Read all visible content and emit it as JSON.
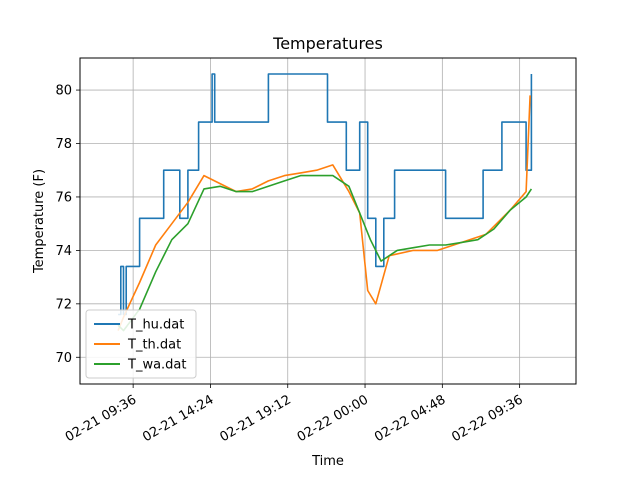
{
  "chart_data": {
    "type": "line",
    "title": "Temperatures",
    "xlabel": "Time",
    "ylabel": "Temperature (F)",
    "xlim": [
      "2021-02-21 06:18",
      "2021-02-22 13:06"
    ],
    "ylim": [
      69.0,
      81.2
    ],
    "x_ticks": [
      {
        "t": "2021-02-21 09:36",
        "label": "02-21 09:36"
      },
      {
        "t": "2021-02-21 14:24",
        "label": "02-21 14:24"
      },
      {
        "t": "2021-02-21 19:12",
        "label": "02-21 19:12"
      },
      {
        "t": "2021-02-22 00:00",
        "label": "02-22 00:00"
      },
      {
        "t": "2021-02-22 04:48",
        "label": "02-22 04:48"
      },
      {
        "t": "2021-02-22 09:36",
        "label": "02-22 09:36"
      }
    ],
    "y_ticks": [
      70,
      72,
      74,
      76,
      78,
      80
    ],
    "grid": true,
    "legend": "lower-left",
    "series": [
      {
        "name": "T_hu.dat",
        "color": "#1f77b4",
        "step": true,
        "points": [
          [
            "2021-02-21 08:40",
            71.6
          ],
          [
            "2021-02-21 08:50",
            73.4
          ],
          [
            "2021-02-21 09:00",
            71.6
          ],
          [
            "2021-02-21 09:10",
            73.4
          ],
          [
            "2021-02-21 10:00",
            75.2
          ],
          [
            "2021-02-21 11:30",
            77.0
          ],
          [
            "2021-02-21 12:30",
            75.2
          ],
          [
            "2021-02-21 13:00",
            77.0
          ],
          [
            "2021-02-21 13:40",
            78.8
          ],
          [
            "2021-02-21 14:30",
            80.6
          ],
          [
            "2021-02-21 14:40",
            78.8
          ],
          [
            "2021-02-21 18:00",
            80.6
          ],
          [
            "2021-02-21 21:40",
            78.8
          ],
          [
            "2021-02-21 22:50",
            77.0
          ],
          [
            "2021-02-21 23:40",
            78.8
          ],
          [
            "2021-02-22 00:10",
            75.2
          ],
          [
            "2021-02-22 00:40",
            73.4
          ],
          [
            "2021-02-22 01:10",
            75.2
          ],
          [
            "2021-02-22 01:50",
            77.0
          ],
          [
            "2021-02-22 05:00",
            75.2
          ],
          [
            "2021-02-22 07:20",
            77.0
          ],
          [
            "2021-02-22 08:30",
            78.8
          ],
          [
            "2021-02-22 10:00",
            77.0
          ],
          [
            "2021-02-22 10:20",
            80.6
          ]
        ]
      },
      {
        "name": "T_th.dat",
        "color": "#ff7f0e",
        "step": false,
        "points": [
          [
            "2021-02-21 08:40",
            71.0
          ],
          [
            "2021-02-21 09:00",
            71.5
          ],
          [
            "2021-02-21 10:00",
            72.8
          ],
          [
            "2021-02-21 11:00",
            74.2
          ],
          [
            "2021-02-21 12:00",
            75.0
          ],
          [
            "2021-02-21 13:00",
            75.8
          ],
          [
            "2021-02-21 14:00",
            76.8
          ],
          [
            "2021-02-21 15:00",
            76.5
          ],
          [
            "2021-02-21 16:00",
            76.2
          ],
          [
            "2021-02-21 17:00",
            76.3
          ],
          [
            "2021-02-21 18:00",
            76.6
          ],
          [
            "2021-02-21 19:00",
            76.8
          ],
          [
            "2021-02-21 20:00",
            76.9
          ],
          [
            "2021-02-21 21:00",
            77.0
          ],
          [
            "2021-02-21 22:00",
            77.2
          ],
          [
            "2021-02-21 23:00",
            76.2
          ],
          [
            "2021-02-21 23:40",
            75.4
          ],
          [
            "2021-02-22 00:10",
            72.5
          ],
          [
            "2021-02-22 00:40",
            72.0
          ],
          [
            "2021-02-22 01:30",
            73.8
          ],
          [
            "2021-02-22 03:00",
            74.0
          ],
          [
            "2021-02-22 04:30",
            74.0
          ],
          [
            "2021-02-22 06:00",
            74.3
          ],
          [
            "2021-02-22 07:30",
            74.6
          ],
          [
            "2021-02-22 09:00",
            75.5
          ],
          [
            "2021-02-22 10:00",
            76.2
          ],
          [
            "2021-02-22 10:15",
            79.8
          ]
        ]
      },
      {
        "name": "T_wa.dat",
        "color": "#2ca02c",
        "step": false,
        "points": [
          [
            "2021-02-21 08:40",
            71.2
          ],
          [
            "2021-02-21 09:00",
            71.0
          ],
          [
            "2021-02-21 10:00",
            71.8
          ],
          [
            "2021-02-21 11:00",
            73.2
          ],
          [
            "2021-02-21 12:00",
            74.4
          ],
          [
            "2021-02-21 13:00",
            75.0
          ],
          [
            "2021-02-21 14:00",
            76.3
          ],
          [
            "2021-02-21 15:00",
            76.4
          ],
          [
            "2021-02-21 16:00",
            76.2
          ],
          [
            "2021-02-21 17:00",
            76.2
          ],
          [
            "2021-02-21 18:00",
            76.4
          ],
          [
            "2021-02-21 19:00",
            76.6
          ],
          [
            "2021-02-21 20:00",
            76.8
          ],
          [
            "2021-02-21 21:00",
            76.8
          ],
          [
            "2021-02-21 22:00",
            76.8
          ],
          [
            "2021-02-21 23:00",
            76.4
          ],
          [
            "2021-02-21 23:40",
            75.4
          ],
          [
            "2021-02-22 00:20",
            74.4
          ],
          [
            "2021-02-22 01:00",
            73.6
          ],
          [
            "2021-02-22 02:00",
            74.0
          ],
          [
            "2021-02-22 03:00",
            74.1
          ],
          [
            "2021-02-22 04:00",
            74.2
          ],
          [
            "2021-02-22 05:00",
            74.2
          ],
          [
            "2021-02-22 06:00",
            74.3
          ],
          [
            "2021-02-22 07:00",
            74.4
          ],
          [
            "2021-02-22 08:00",
            74.8
          ],
          [
            "2021-02-22 09:00",
            75.5
          ],
          [
            "2021-02-22 10:00",
            76.0
          ],
          [
            "2021-02-22 10:20",
            76.3
          ]
        ]
      }
    ]
  }
}
